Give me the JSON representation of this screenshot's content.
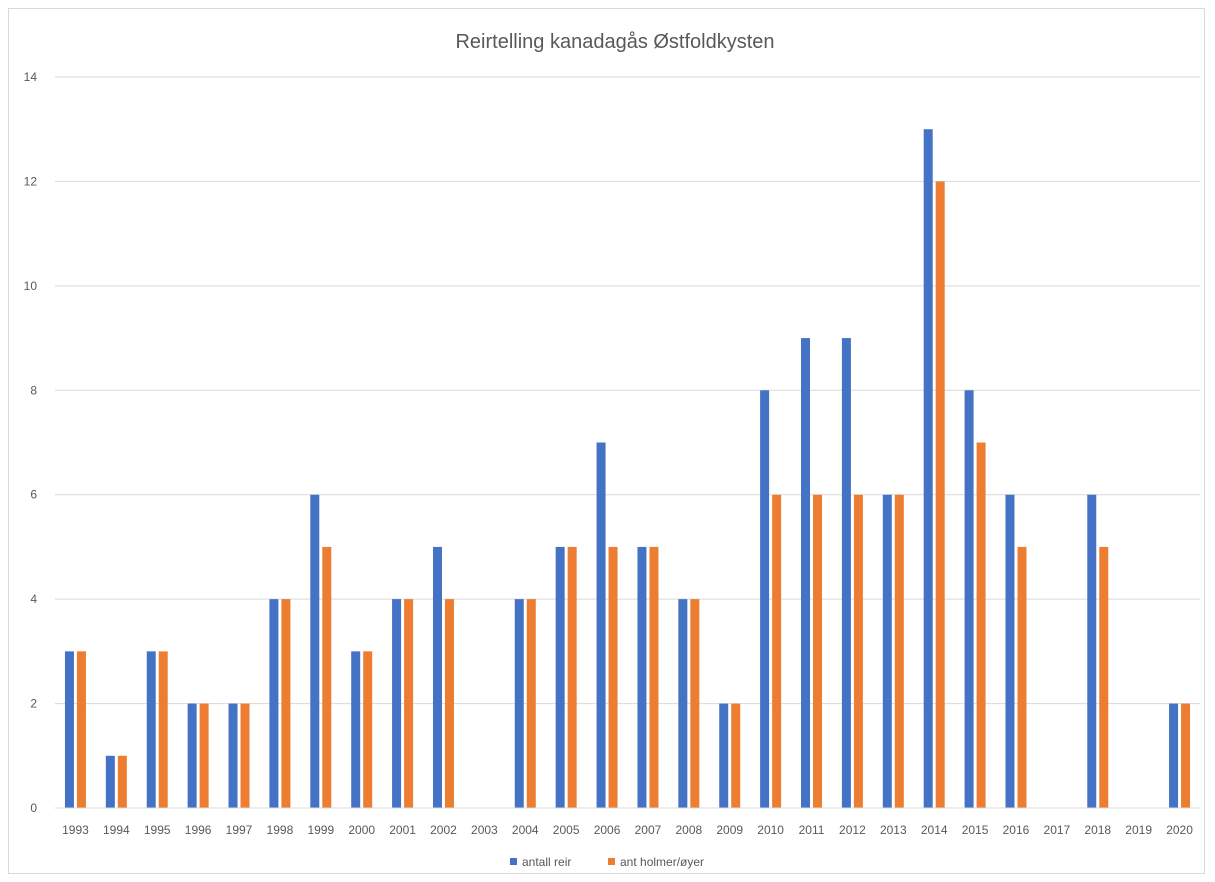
{
  "chart_data": {
    "type": "bar",
    "title": "Reirtelling kanadagås Østfoldkysten",
    "xlabel": "",
    "ylabel": "",
    "ylim": [
      0,
      14
    ],
    "yticks": [
      0,
      2,
      4,
      6,
      8,
      10,
      12,
      14
    ],
    "grid": true,
    "legend_position": "bottom",
    "categories": [
      "1993",
      "1994",
      "1995",
      "1996",
      "1997",
      "1998",
      "1999",
      "2000",
      "2001",
      "2002",
      "2003",
      "2004",
      "2005",
      "2006",
      "2007",
      "2008",
      "2009",
      "2010",
      "2011",
      "2012",
      "2013",
      "2014",
      "2015",
      "2016",
      "2017",
      "2018",
      "2019",
      "2020"
    ],
    "series": [
      {
        "name": "antall reir",
        "color": "#4472c4",
        "values": [
          3,
          1,
          3,
          2,
          2,
          4,
          6,
          3,
          4,
          5,
          0,
          4,
          5,
          7,
          5,
          4,
          2,
          8,
          9,
          9,
          6,
          13,
          8,
          6,
          0,
          6,
          0,
          2
        ]
      },
      {
        "name": "ant holmer/øyer",
        "color": "#ed7d31",
        "values": [
          3,
          1,
          3,
          2,
          2,
          4,
          5,
          3,
          4,
          4,
          0,
          4,
          5,
          5,
          5,
          4,
          2,
          6,
          6,
          6,
          6,
          12,
          7,
          5,
          0,
          5,
          0,
          2
        ]
      }
    ]
  }
}
